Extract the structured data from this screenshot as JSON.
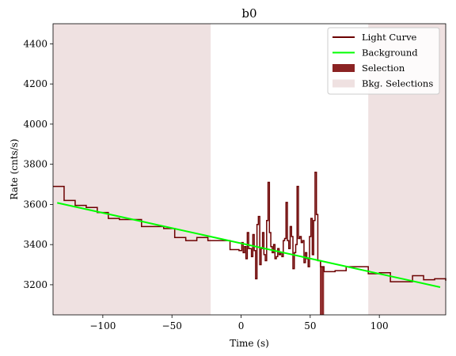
{
  "chart_data": {
    "type": "line",
    "title": "b0",
    "xlabel": "Time (s)",
    "ylabel": "Rate (cnts/s)",
    "xlim": [
      -136,
      148
    ],
    "ylim": [
      3050,
      4500
    ],
    "xticks": [
      -100,
      -50,
      0,
      50,
      100
    ],
    "yticks": [
      3200,
      3400,
      3600,
      3800,
      4000,
      4200,
      4400
    ],
    "grid": false,
    "legend_position": "top-right",
    "legend": [
      {
        "label": "Light Curve",
        "kind": "line",
        "color": "#6b0000"
      },
      {
        "label": "Background",
        "kind": "line",
        "color": "#00ff00"
      },
      {
        "label": "Selection",
        "kind": "patch",
        "color": "#8b2323"
      },
      {
        "label": "Bkg. Selections",
        "kind": "patch",
        "color": "#efe1e1"
      }
    ],
    "light_curve": {
      "color": "#6b0000",
      "step_x": [
        -136,
        -128,
        -120,
        -112,
        -104,
        -96,
        -88,
        -80,
        -72,
        -64,
        -56,
        -48,
        -40,
        -32,
        -24,
        -16,
        -8,
        -1.5,
        0.5,
        1.5,
        2.5,
        3.5,
        4.5,
        5.5,
        6.5,
        7.5,
        8.5,
        9.5,
        10.5,
        11.5,
        12.5,
        13.5,
        14.5,
        15.5,
        16.5,
        17.5,
        18.5,
        19.5,
        20.5,
        21.5,
        22.5,
        23.5,
        24.5,
        25.5,
        26.5,
        27.5,
        28.5,
        29.5,
        30.5,
        31.5,
        32.5,
        33.5,
        34.5,
        35.5,
        36.5,
        37.5,
        38.5,
        39.5,
        40.5,
        41.5,
        42.5,
        43.5,
        44.5,
        45.5,
        46.5,
        47.5,
        48.5,
        49.5,
        50.5,
        51.5,
        52.5,
        53.5,
        54.5,
        55.5,
        56.5,
        57.5,
        58.5,
        59.5,
        60,
        68,
        76,
        84,
        92,
        100,
        108,
        116,
        124,
        132,
        140,
        148
      ],
      "step_y": [
        3690,
        3620,
        3595,
        3585,
        3560,
        3530,
        3525,
        3525,
        3490,
        3490,
        3480,
        3435,
        3420,
        3435,
        3420,
        3420,
        3375,
        3370,
        3410,
        3360,
        3390,
        3330,
        3460,
        3380,
        3380,
        3340,
        3450,
        3370,
        3230,
        3500,
        3540,
        3300,
        3380,
        3460,
        3350,
        3320,
        3520,
        3710,
        3460,
        3390,
        3360,
        3400,
        3330,
        3340,
        3380,
        3350,
        3360,
        3340,
        3420,
        3430,
        3610,
        3420,
        3380,
        3490,
        3440,
        3280,
        3360,
        3400,
        3690,
        3430,
        3440,
        3410,
        3420,
        3310,
        3360,
        3330,
        3290,
        3440,
        3530,
        3350,
        3520,
        3760,
        3550,
        3320,
        3320,
        3290,
        3290,
        3290,
        3265,
        3270,
        3290,
        3290,
        3255,
        3260,
        3215,
        3215,
        3245,
        3225,
        3230,
        3220
      ]
    },
    "background": {
      "color": "#00ff00",
      "x": [
        -133,
        144
      ],
      "y": [
        3608,
        3188
      ]
    },
    "selection": {
      "color": "#8b2323",
      "x_range": [
        57,
        60
      ]
    },
    "bkg_selections": {
      "color": "#efe1e1",
      "x_ranges": [
        [
          -136,
          -22
        ],
        [
          92,
          148
        ]
      ]
    }
  }
}
